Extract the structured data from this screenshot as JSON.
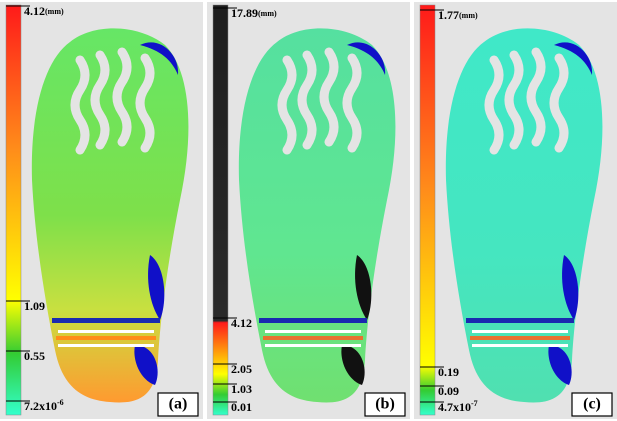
{
  "panels": [
    {
      "label": "(a)",
      "unit": "(mm)",
      "ticks": [
        {
          "text": "4.12"
        },
        {
          "text": "1.09"
        },
        {
          "text": "0.55"
        },
        {
          "text": "7.2x10",
          "exponent": "-6"
        }
      ]
    },
    {
      "label": "(b)",
      "unit": "(mm)",
      "ticks": [
        {
          "text": "17.89"
        },
        {
          "text": "4.12"
        },
        {
          "text": "2.05"
        },
        {
          "text": "1.03"
        },
        {
          "text": "0.01"
        }
      ]
    },
    {
      "label": "(c)",
      "unit": "(mm)",
      "ticks": [
        {
          "text": "1.77"
        },
        {
          "text": "0.19"
        },
        {
          "text": "0.09"
        },
        {
          "text": "4.7x10",
          "exponent": "-7"
        }
      ]
    }
  ]
}
